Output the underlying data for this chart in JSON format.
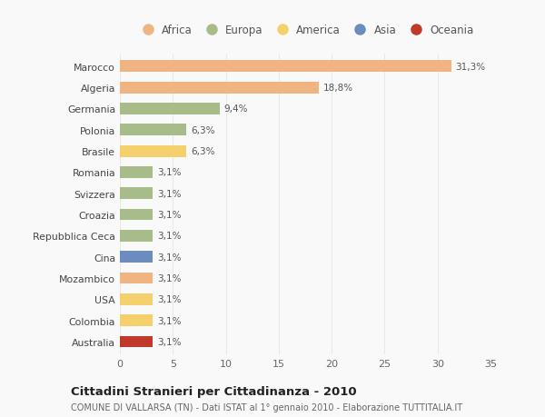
{
  "categories": [
    "Marocco",
    "Algeria",
    "Germania",
    "Polonia",
    "Brasile",
    "Romania",
    "Svizzera",
    "Croazia",
    "Repubblica Ceca",
    "Cina",
    "Mozambico",
    "USA",
    "Colombia",
    "Australia"
  ],
  "values": [
    31.3,
    18.8,
    9.4,
    6.3,
    6.3,
    3.1,
    3.1,
    3.1,
    3.1,
    3.1,
    3.1,
    3.1,
    3.1,
    3.1
  ],
  "labels": [
    "31,3%",
    "18,8%",
    "9,4%",
    "6,3%",
    "6,3%",
    "3,1%",
    "3,1%",
    "3,1%",
    "3,1%",
    "3,1%",
    "3,1%",
    "3,1%",
    "3,1%",
    "3,1%"
  ],
  "colors": [
    "#f0b483",
    "#f0b483",
    "#a8bc8a",
    "#a8bc8a",
    "#f5d16e",
    "#a8bc8a",
    "#a8bc8a",
    "#a8bc8a",
    "#a8bc8a",
    "#6b8cbf",
    "#f0b483",
    "#f5d16e",
    "#f5d16e",
    "#c0392b"
  ],
  "continent_colors": {
    "Africa": "#f0b483",
    "Europa": "#a8bc8a",
    "America": "#f5d16e",
    "Asia": "#6b8cbf",
    "Oceania": "#c0392b"
  },
  "legend_order": [
    "Africa",
    "Europa",
    "America",
    "Asia",
    "Oceania"
  ],
  "xlim": [
    0,
    35
  ],
  "xticks": [
    0,
    5,
    10,
    15,
    20,
    25,
    30,
    35
  ],
  "title": "Cittadini Stranieri per Cittadinanza - 2010",
  "subtitle": "COMUNE DI VALLARSA (TN) - Dati ISTAT al 1° gennaio 2010 - Elaborazione TUTTITALIA.IT",
  "background_color": "#f9f9f9",
  "grid_color": "#e8e8e8",
  "bar_height": 0.55
}
